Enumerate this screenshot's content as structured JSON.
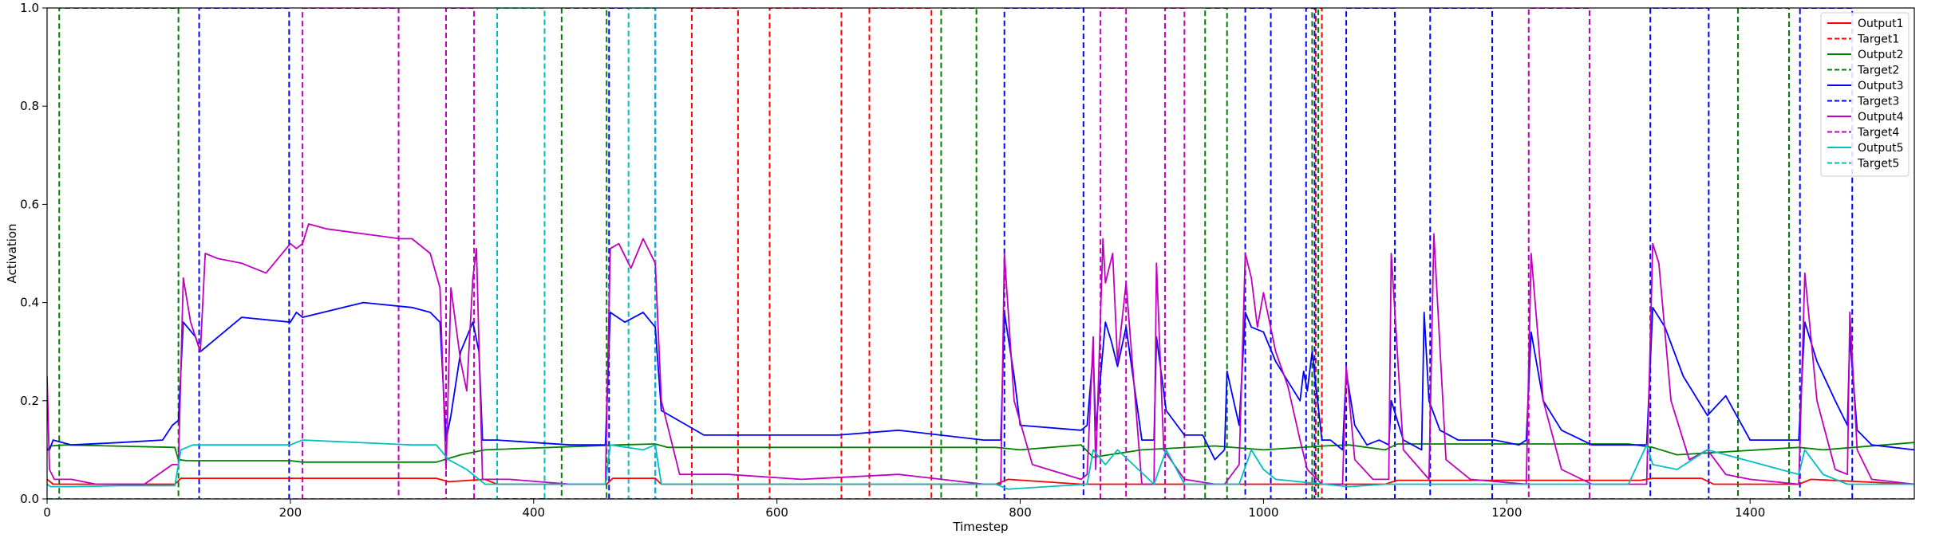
{
  "chart_data": {
    "type": "line",
    "title": "",
    "xlabel": "Timestep",
    "ylabel": "Activation",
    "xlim": [
      0,
      1535
    ],
    "ylim": [
      0,
      1.0
    ],
    "xticks": [
      0,
      200,
      400,
      600,
      800,
      1000,
      1200,
      1400
    ],
    "yticks": [
      0.0,
      0.2,
      0.4,
      0.6,
      0.8,
      1.0
    ],
    "grid": false,
    "legend_position": "top-right",
    "legend": [
      {
        "label": "Output1",
        "color": "#ff0000",
        "style": "solid"
      },
      {
        "label": "Target1",
        "color": "#ff0000",
        "style": "dashed"
      },
      {
        "label": "Output2",
        "color": "#008000",
        "style": "solid"
      },
      {
        "label": "Target2",
        "color": "#008000",
        "style": "dashed"
      },
      {
        "label": "Output3",
        "color": "#0000ff",
        "style": "solid"
      },
      {
        "label": "Target3",
        "color": "#0000ff",
        "style": "dashed"
      },
      {
        "label": "Output4",
        "color": "#bf00bf",
        "style": "solid"
      },
      {
        "label": "Target4",
        "color": "#bf00bf",
        "style": "dashed"
      },
      {
        "label": "Output5",
        "color": "#00bfbf",
        "style": "solid"
      },
      {
        "label": "Target5",
        "color": "#00bfbf",
        "style": "dashed"
      }
    ],
    "target_intervals": {
      "Target1": [
        [
          530,
          568
        ],
        [
          594,
          653
        ],
        [
          676,
          727
        ],
        [
          1043,
          1048
        ]
      ],
      "Target2": [
        [
          10,
          108
        ],
        [
          423,
          460
        ],
        [
          735,
          764
        ],
        [
          952,
          970
        ],
        [
          1040,
          1045
        ],
        [
          1390,
          1432
        ]
      ],
      "Target3": [
        [
          125,
          199
        ],
        [
          462,
          500
        ],
        [
          787,
          852
        ],
        [
          985,
          1006
        ],
        [
          1035,
          1042
        ],
        [
          1068,
          1108
        ],
        [
          1137,
          1188
        ],
        [
          1318,
          1366
        ],
        [
          1441,
          1484
        ]
      ],
      "Target4": [
        [
          210,
          289
        ],
        [
          328,
          351
        ],
        [
          866,
          887
        ],
        [
          919,
          935
        ],
        [
          1218,
          1268
        ]
      ],
      "Target5": [
        [
          370,
          409
        ],
        [
          478,
          500
        ]
      ]
    },
    "series": [
      {
        "name": "Output1",
        "color": "#ff0000",
        "x": [
          0,
          5,
          105,
          110,
          320,
          330,
          360,
          370,
          460,
          465,
          500,
          505,
          780,
          790,
          850,
          1050,
          1100,
          1110,
          1310,
          1320,
          1360,
          1370,
          1440,
          1450,
          1535
        ],
        "y": [
          0.04,
          0.03,
          0.03,
          0.042,
          0.042,
          0.035,
          0.04,
          0.03,
          0.03,
          0.042,
          0.042,
          0.03,
          0.03,
          0.04,
          0.03,
          0.03,
          0.03,
          0.038,
          0.038,
          0.042,
          0.042,
          0.03,
          0.03,
          0.04,
          0.03
        ]
      },
      {
        "name": "Output2",
        "color": "#008000",
        "x": [
          0,
          3,
          15,
          105,
          108,
          115,
          200,
          210,
          300,
          320,
          340,
          360,
          470,
          500,
          510,
          780,
          800,
          850,
          860,
          900,
          960,
          1000,
          1050,
          1070,
          1100,
          1110,
          1300,
          1320,
          1340,
          1440,
          1460,
          1535
        ],
        "y": [
          0.1,
          0.108,
          0.11,
          0.105,
          0.08,
          0.078,
          0.078,
          0.075,
          0.075,
          0.075,
          0.09,
          0.1,
          0.11,
          0.112,
          0.105,
          0.105,
          0.1,
          0.11,
          0.085,
          0.1,
          0.108,
          0.1,
          0.108,
          0.11,
          0.1,
          0.112,
          0.112,
          0.105,
          0.09,
          0.105,
          0.1,
          0.115
        ]
      },
      {
        "name": "Output3",
        "color": "#0000ff",
        "x": [
          0,
          2,
          5,
          20,
          60,
          95,
          103,
          108,
          112,
          122,
          126,
          160,
          200,
          205,
          210,
          260,
          300,
          315,
          323,
          328,
          332,
          340,
          350,
          355,
          358,
          370,
          400,
          430,
          459,
          463,
          475,
          490,
          500,
          505,
          540,
          600,
          650,
          700,
          770,
          784,
          787,
          795,
          800,
          850,
          855,
          860,
          862,
          870,
          875,
          880,
          887,
          900,
          910,
          912,
          920,
          935,
          950,
          960,
          968,
          970,
          980,
          985,
          990,
          1000,
          1010,
          1020,
          1030,
          1033,
          1036,
          1040,
          1048,
          1055,
          1065,
          1068,
          1075,
          1085,
          1095,
          1103,
          1105,
          1115,
          1130,
          1132,
          1136,
          1145,
          1160,
          1190,
          1210,
          1216,
          1220,
          1230,
          1245,
          1270,
          1300,
          1310,
          1315,
          1320,
          1330,
          1345,
          1365,
          1380,
          1400,
          1430,
          1435,
          1440,
          1445,
          1455,
          1470,
          1480,
          1482,
          1488,
          1500,
          1535
        ],
        "y": [
          0.1,
          0.1,
          0.12,
          0.11,
          0.115,
          0.12,
          0.15,
          0.16,
          0.36,
          0.33,
          0.3,
          0.37,
          0.36,
          0.38,
          0.37,
          0.4,
          0.39,
          0.38,
          0.36,
          0.12,
          0.17,
          0.3,
          0.36,
          0.3,
          0.12,
          0.12,
          0.115,
          0.11,
          0.11,
          0.38,
          0.36,
          0.38,
          0.35,
          0.18,
          0.13,
          0.13,
          0.13,
          0.14,
          0.12,
          0.12,
          0.38,
          0.25,
          0.15,
          0.14,
          0.15,
          0.3,
          0.14,
          0.36,
          0.32,
          0.27,
          0.35,
          0.12,
          0.12,
          0.33,
          0.18,
          0.13,
          0.13,
          0.08,
          0.1,
          0.26,
          0.15,
          0.38,
          0.35,
          0.34,
          0.28,
          0.24,
          0.2,
          0.26,
          0.22,
          0.3,
          0.12,
          0.12,
          0.1,
          0.26,
          0.15,
          0.11,
          0.12,
          0.11,
          0.2,
          0.12,
          0.1,
          0.38,
          0.2,
          0.14,
          0.12,
          0.12,
          0.11,
          0.12,
          0.34,
          0.2,
          0.14,
          0.11,
          0.11,
          0.11,
          0.11,
          0.39,
          0.35,
          0.25,
          0.17,
          0.21,
          0.12,
          0.12,
          0.12,
          0.12,
          0.36,
          0.28,
          0.2,
          0.15,
          0.33,
          0.14,
          0.11,
          0.1
        ]
      },
      {
        "name": "Output4",
        "color": "#bf00bf",
        "x": [
          0,
          2,
          6,
          20,
          40,
          80,
          103,
          108,
          112,
          118,
          126,
          130,
          140,
          160,
          180,
          200,
          205,
          210,
          215,
          230,
          260,
          290,
          300,
          315,
          323,
          328,
          332,
          340,
          345,
          350,
          353,
          358,
          380,
          430,
          459,
          463,
          470,
          480,
          490,
          500,
          505,
          520,
          560,
          620,
          700,
          770,
          784,
          787,
          795,
          810,
          850,
          855,
          860,
          862,
          868,
          870,
          876,
          880,
          887,
          900,
          910,
          912,
          918,
          935,
          960,
          968,
          980,
          985,
          990,
          995,
          1000,
          1010,
          1020,
          1030,
          1036,
          1040,
          1048,
          1055,
          1065,
          1068,
          1075,
          1090,
          1103,
          1105,
          1115,
          1136,
          1140,
          1150,
          1170,
          1216,
          1220,
          1230,
          1245,
          1270,
          1300,
          1315,
          1320,
          1325,
          1335,
          1350,
          1365,
          1380,
          1400,
          1440,
          1445,
          1455,
          1470,
          1480,
          1482,
          1488,
          1500,
          1535
        ],
        "y": [
          0.25,
          0.06,
          0.04,
          0.04,
          0.03,
          0.03,
          0.07,
          0.07,
          0.45,
          0.36,
          0.3,
          0.5,
          0.49,
          0.48,
          0.46,
          0.52,
          0.51,
          0.52,
          0.56,
          0.55,
          0.54,
          0.53,
          0.53,
          0.5,
          0.43,
          0.06,
          0.43,
          0.28,
          0.22,
          0.45,
          0.51,
          0.04,
          0.04,
          0.03,
          0.03,
          0.51,
          0.52,
          0.47,
          0.53,
          0.48,
          0.2,
          0.05,
          0.05,
          0.04,
          0.05,
          0.03,
          0.03,
          0.5,
          0.2,
          0.07,
          0.04,
          0.05,
          0.33,
          0.06,
          0.53,
          0.44,
          0.5,
          0.28,
          0.44,
          0.03,
          0.03,
          0.48,
          0.1,
          0.04,
          0.03,
          0.03,
          0.07,
          0.5,
          0.45,
          0.35,
          0.42,
          0.3,
          0.23,
          0.12,
          0.06,
          0.05,
          0.03,
          0.03,
          0.03,
          0.27,
          0.08,
          0.04,
          0.04,
          0.5,
          0.1,
          0.04,
          0.54,
          0.08,
          0.04,
          0.03,
          0.5,
          0.2,
          0.06,
          0.03,
          0.03,
          0.03,
          0.52,
          0.48,
          0.2,
          0.08,
          0.1,
          0.05,
          0.04,
          0.03,
          0.46,
          0.2,
          0.06,
          0.05,
          0.38,
          0.1,
          0.04,
          0.03
        ]
      },
      {
        "name": "Output5",
        "color": "#00bfbf",
        "x": [
          0,
          3,
          20,
          60,
          105,
          110,
          120,
          200,
          210,
          300,
          320,
          330,
          345,
          360,
          400,
          430,
          459,
          463,
          490,
          500,
          505,
          780,
          790,
          855,
          860,
          870,
          880,
          910,
          920,
          935,
          960,
          980,
          990,
          1000,
          1010,
          1050,
          1070,
          1100,
          1110,
          1300,
          1315,
          1320,
          1340,
          1365,
          1440,
          1445,
          1460,
          1480,
          1535
        ],
        "y": [
          0.03,
          0.025,
          0.025,
          0.027,
          0.027,
          0.1,
          0.11,
          0.11,
          0.12,
          0.11,
          0.11,
          0.08,
          0.06,
          0.03,
          0.03,
          0.03,
          0.03,
          0.11,
          0.1,
          0.11,
          0.03,
          0.03,
          0.02,
          0.03,
          0.1,
          0.07,
          0.1,
          0.03,
          0.1,
          0.03,
          0.03,
          0.03,
          0.1,
          0.06,
          0.04,
          0.03,
          0.025,
          0.03,
          0.03,
          0.03,
          0.11,
          0.07,
          0.06,
          0.1,
          0.05,
          0.1,
          0.05,
          0.03,
          0.03
        ]
      }
    ]
  }
}
